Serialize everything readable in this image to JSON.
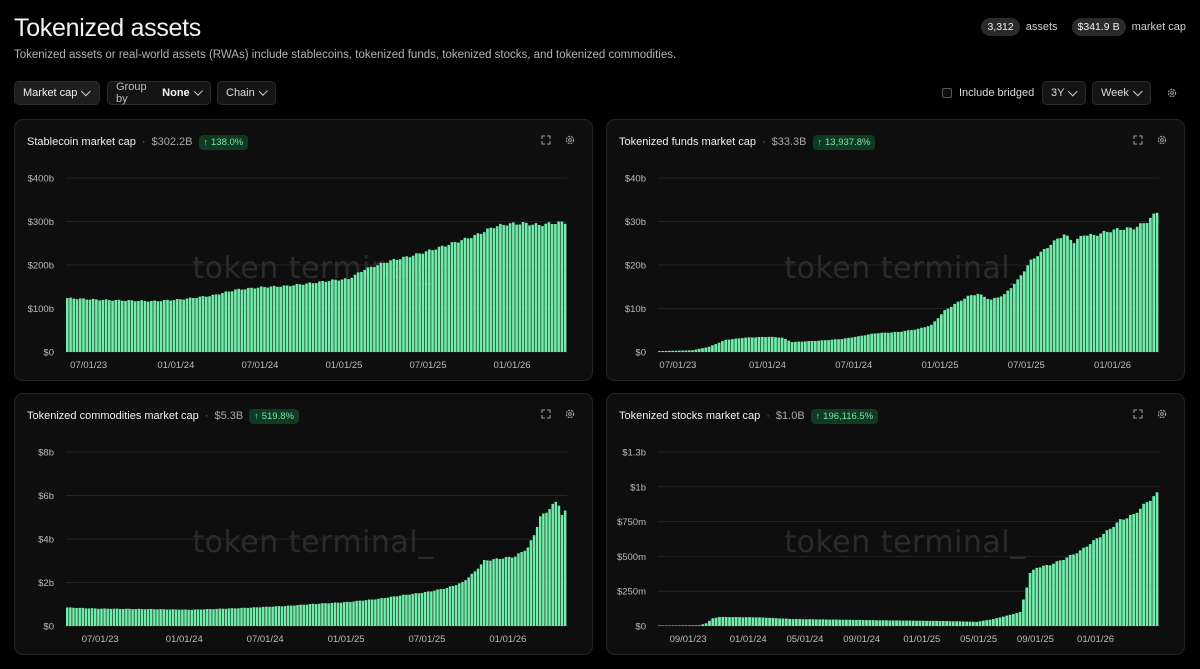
{
  "header": {
    "title": "Tokenized assets",
    "subtitle": "Tokenized assets or real-world assets (RWAs) include stablecoins, tokenized funds, tokenized stocks, and tokenized commodities.",
    "assets_count": "3,312",
    "assets_label": "assets",
    "market_cap": "$341.9 B",
    "market_cap_label": "market cap"
  },
  "toolbar": {
    "metric": "Market cap",
    "group_by_label": "Group by",
    "group_by_value": "None",
    "chain": "Chain",
    "include_bridged": "Include bridged",
    "range": "3Y",
    "granularity": "Week"
  },
  "colors": {
    "bar": "#72ecaa",
    "badge_bg": "#0f3a24",
    "badge_text": "#7ee3a4"
  },
  "watermark": "token terminal_",
  "chart_data": [
    {
      "type": "bar",
      "title": "Stablecoin market cap",
      "value": "$302.2B",
      "change": "138.0%",
      "y_ticks": [
        "$0",
        "$100b",
        "$200b",
        "$300b",
        "$400b"
      ],
      "ylim": [
        0,
        400
      ],
      "x_ticks": [
        "07/01/23",
        "01/01/24",
        "07/01/24",
        "01/01/25",
        "07/01/25",
        "01/01/26"
      ],
      "x_tick_index": [
        7,
        34,
        60,
        86,
        112,
        138
      ],
      "anchors": [
        [
          0,
          124
        ],
        [
          10,
          120
        ],
        [
          20,
          118
        ],
        [
          27,
          117
        ],
        [
          35,
          121
        ],
        [
          45,
          130
        ],
        [
          52,
          143
        ],
        [
          60,
          149
        ],
        [
          68,
          152
        ],
        [
          75,
          158
        ],
        [
          82,
          165
        ],
        [
          87,
          168
        ],
        [
          92,
          190
        ],
        [
          100,
          210
        ],
        [
          107,
          222
        ],
        [
          115,
          240
        ],
        [
          122,
          257
        ],
        [
          126,
          267
        ],
        [
          132,
          288
        ],
        [
          136,
          294
        ],
        [
          141,
          296
        ],
        [
          146,
          292
        ],
        [
          151,
          297
        ],
        [
          154,
          298
        ]
      ],
      "count": 155
    },
    {
      "type": "bar",
      "title": "Tokenized funds market cap",
      "value": "$33.3B",
      "change": "13,937.8%",
      "y_ticks": [
        "$0",
        "$10b",
        "$20b",
        "$30b",
        "$40b"
      ],
      "ylim": [
        0,
        40
      ],
      "x_ticks": [
        "07/01/23",
        "01/01/24",
        "07/01/24",
        "01/01/25",
        "07/01/25",
        "01/01/26"
      ],
      "x_tick_index": [
        6,
        33,
        59,
        85,
        111,
        137
      ],
      "anchors": [
        [
          0,
          0.2
        ],
        [
          10,
          0.4
        ],
        [
          15,
          1.2
        ],
        [
          20,
          2.8
        ],
        [
          26,
          3.3
        ],
        [
          33,
          3.5
        ],
        [
          37,
          3.3
        ],
        [
          40,
          2.3
        ],
        [
          48,
          2.6
        ],
        [
          55,
          3.0
        ],
        [
          60,
          3.6
        ],
        [
          65,
          4.3
        ],
        [
          72,
          4.6
        ],
        [
          78,
          5.3
        ],
        [
          82,
          6.2
        ],
        [
          86,
          9.5
        ],
        [
          89,
          11.0
        ],
        [
          93,
          12.8
        ],
        [
          96,
          13.4
        ],
        [
          100,
          12.0
        ],
        [
          104,
          13.2
        ],
        [
          108,
          16.5
        ],
        [
          112,
          21.0
        ],
        [
          116,
          23.5
        ],
        [
          120,
          26.0
        ],
        [
          122,
          27.0
        ],
        [
          125,
          25.3
        ],
        [
          128,
          27.0
        ],
        [
          131,
          26.8
        ],
        [
          134,
          27.5
        ],
        [
          138,
          28.2
        ],
        [
          143,
          28.5
        ],
        [
          147,
          30.0
        ],
        [
          150,
          32.2
        ]
      ],
      "count": 151
    },
    {
      "type": "bar",
      "title": "Tokenized commodities market cap",
      "value": "$5.3B",
      "change": "519.8%",
      "y_ticks": [
        "$0",
        "$2b",
        "$4b",
        "$6b",
        "$8b"
      ],
      "ylim": [
        0,
        8
      ],
      "x_ticks": [
        "07/01/23",
        "01/01/24",
        "07/01/24",
        "01/01/25",
        "07/01/25",
        "01/01/26"
      ],
      "x_tick_index": [
        11,
        38,
        64,
        90,
        116,
        142
      ],
      "anchors": [
        [
          0,
          0.85
        ],
        [
          10,
          0.8
        ],
        [
          25,
          0.78
        ],
        [
          40,
          0.75
        ],
        [
          55,
          0.82
        ],
        [
          70,
          0.92
        ],
        [
          80,
          1.02
        ],
        [
          90,
          1.1
        ],
        [
          100,
          1.25
        ],
        [
          107,
          1.4
        ],
        [
          115,
          1.55
        ],
        [
          122,
          1.75
        ],
        [
          127,
          2.0
        ],
        [
          131,
          2.5
        ],
        [
          134,
          3.0
        ],
        [
          139,
          3.1
        ],
        [
          144,
          3.2
        ],
        [
          148,
          3.6
        ],
        [
          150,
          4.2
        ],
        [
          152,
          5.0
        ],
        [
          155,
          5.4
        ],
        [
          157,
          5.7
        ],
        [
          158,
          5.6
        ],
        [
          159,
          5.1
        ],
        [
          160,
          5.25
        ]
      ],
      "count": 161
    },
    {
      "type": "bar",
      "title": "Tokenized stocks market cap",
      "value": "$1.0B",
      "change": "196,116.5%",
      "y_ticks": [
        "$0",
        "$250m",
        "$500m",
        "$750m",
        "$1b",
        "$1.3b"
      ],
      "ylim": [
        0,
        1.25
      ],
      "x_ticks": [
        "09/01/23",
        "01/01/24",
        "05/01/24",
        "09/01/24",
        "01/01/25",
        "05/01/25",
        "09/01/25",
        "01/01/26"
      ],
      "x_tick_index": [
        9,
        27,
        44,
        61,
        79,
        96,
        113,
        131
      ],
      "anchors": [
        [
          0,
          0.003
        ],
        [
          12,
          0.005
        ],
        [
          14,
          0.02
        ],
        [
          16,
          0.055
        ],
        [
          18,
          0.065
        ],
        [
          30,
          0.062
        ],
        [
          40,
          0.05
        ],
        [
          55,
          0.045
        ],
        [
          70,
          0.04
        ],
        [
          85,
          0.036
        ],
        [
          95,
          0.03
        ],
        [
          100,
          0.05
        ],
        [
          105,
          0.08
        ],
        [
          108,
          0.1
        ],
        [
          110,
          0.28
        ],
        [
          111,
          0.38
        ],
        [
          113,
          0.42
        ],
        [
          117,
          0.44
        ],
        [
          121,
          0.48
        ],
        [
          126,
          0.54
        ],
        [
          130,
          0.61
        ],
        [
          134,
          0.68
        ],
        [
          138,
          0.76
        ],
        [
          142,
          0.8
        ],
        [
          146,
          0.89
        ],
        [
          149,
          0.95
        ]
      ],
      "count": 150
    }
  ]
}
